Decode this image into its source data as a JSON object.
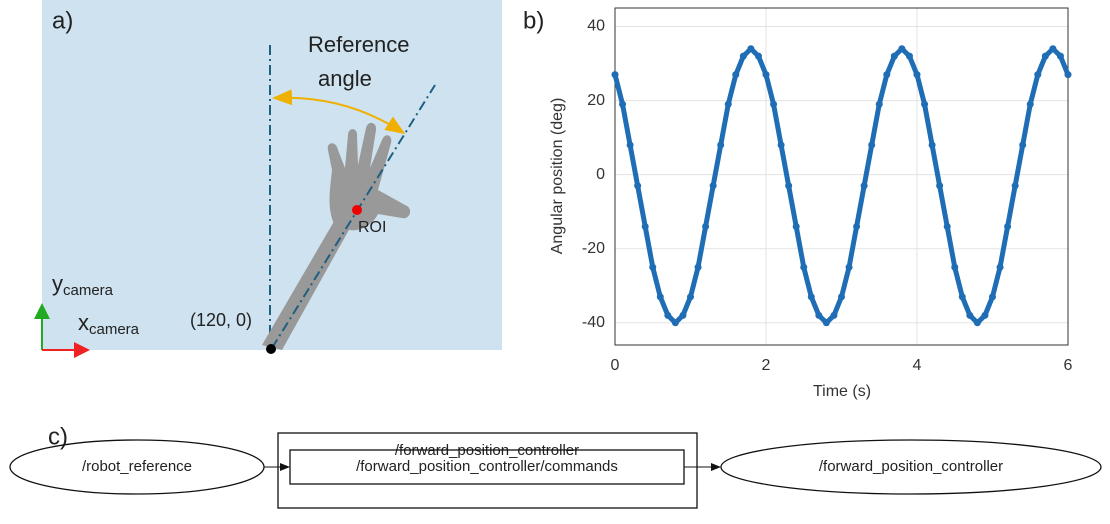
{
  "panel_a": {
    "label": "a)",
    "reference_angle": [
      "Reference",
      "angle"
    ],
    "roi": "ROI",
    "origin": "(120, 0)",
    "y_axis": {
      "text": "y",
      "sub": "camera"
    },
    "x_axis": {
      "text": "x",
      "sub": "camera"
    }
  },
  "chart_data": {
    "type": "scatter",
    "label": "b)",
    "xlabel": "Time (s)",
    "ylabel": "Angular position (deg)",
    "x": [
      0,
      0.1,
      0.2,
      0.3,
      0.4,
      0.5,
      0.6,
      0.7,
      0.8,
      0.9,
      1,
      1.1,
      1.2,
      1.3,
      1.4,
      1.5,
      1.6,
      1.7,
      1.8,
      1.9,
      2,
      2.1,
      2.2,
      2.3,
      2.4,
      2.5,
      2.6,
      2.7,
      2.8,
      2.9,
      3,
      3.1,
      3.2,
      3.3,
      3.4,
      3.5,
      3.6,
      3.7,
      3.8,
      3.9,
      4,
      4.1,
      4.2,
      4.3,
      4.4,
      4.5,
      4.6,
      4.7,
      4.8,
      4.9,
      5,
      5.1,
      5.2,
      5.3,
      5.4,
      5.5,
      5.6,
      5.7,
      5.8,
      5.9,
      6
    ],
    "values": [
      27,
      19,
      8,
      -3,
      -14,
      -25,
      -33,
      -38,
      -40,
      -38,
      -33,
      -25,
      -14,
      -3,
      8,
      19,
      27,
      32,
      34,
      32,
      27,
      19,
      8,
      -3,
      -14,
      -25,
      -33,
      -38,
      -40,
      -38,
      -33,
      -25,
      -14,
      -3,
      8,
      19,
      27,
      32,
      34,
      32,
      27,
      19,
      8,
      -3,
      -14,
      -25,
      -33,
      -38,
      -40,
      -38,
      -33,
      -25,
      -14,
      -3,
      8,
      19,
      27,
      32,
      34,
      32,
      27
    ],
    "color": "#1f6db5",
    "xlim": [
      0,
      6
    ],
    "ylim": [
      -46,
      45
    ],
    "xticks": [
      0,
      2,
      4,
      6
    ],
    "yticks": [
      -40,
      -20,
      0,
      20,
      40
    ],
    "grid": true
  },
  "panel_c": {
    "label": "c)",
    "source": "/robot_reference",
    "cluster": "/forward_position_controller",
    "topic": "/forward_position_controller/commands",
    "target": "/forward_position_controller"
  }
}
